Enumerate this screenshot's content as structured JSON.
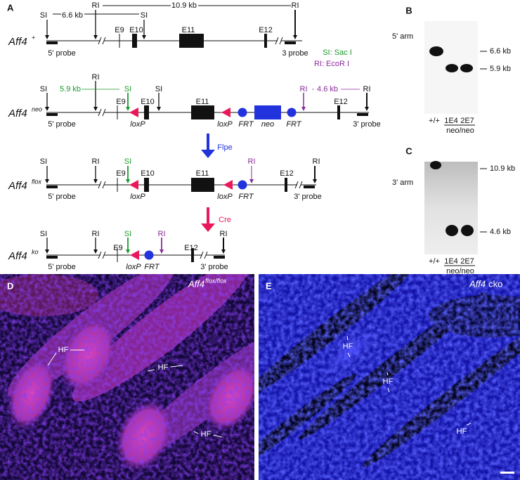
{
  "panel_a": {
    "label": "A",
    "legend": [
      "SI: Sac I",
      "RI: EcoR I"
    ],
    "steps": [
      "Flpe",
      "Cre"
    ],
    "alleles": [
      {
        "name": "Aff4",
        "sup": "+",
        "labels": [
          "SI",
          "6.6 kb",
          "RI",
          "SI",
          "10.9 kb",
          "RI",
          "E9",
          "E10",
          "E11",
          "E12",
          "5' probe",
          "3 probe"
        ]
      },
      {
        "name": "Aff4",
        "sup": "neo",
        "labels": [
          "SI",
          "5.9 kb",
          "RI",
          "SI",
          "SI",
          "RI",
          "4.6 kb",
          "RI",
          "E9",
          "E10",
          "E11",
          "E12",
          "loxP",
          "loxP",
          "FRT",
          "neo",
          "FRT",
          "5' probe",
          "3' probe"
        ]
      },
      {
        "name": "Aff4",
        "sup": "flox",
        "labels": [
          "SI",
          "RI",
          "SI",
          "RI",
          "RI",
          "E9",
          "E10",
          "E11",
          "E12",
          "loxP",
          "loxP",
          "FRT",
          "5' probe",
          "3' probe"
        ]
      },
      {
        "name": "Aff4",
        "sup": "ko",
        "labels": [
          "SI",
          "RI",
          "SI",
          "RI",
          "RI",
          "E9",
          "E12",
          "loxP",
          "FRT",
          "5' probe",
          "3' probe"
        ]
      }
    ]
  },
  "panel_b": {
    "label": "B",
    "probe": "5' arm",
    "sizes": [
      "6.6 kb",
      "5.9 kb"
    ],
    "lanes": [
      "+/+",
      "1E4",
      "2E7"
    ],
    "genotype": "neo/neo"
  },
  "panel_c": {
    "label": "C",
    "probe": "3' arm",
    "sizes": [
      "10.9 kb",
      "4.6 kb"
    ],
    "lanes": [
      "+/+",
      "1E4",
      "2E7"
    ],
    "genotype": "neo/neo"
  },
  "panel_d": {
    "label": "D",
    "gene": "Aff4",
    "genotype": "flox/flox",
    "hf": [
      "HF",
      "HF",
      "HF"
    ]
  },
  "panel_e": {
    "label": "E",
    "gene": "Aff4",
    "genotype": "cko",
    "hf": [
      "HF",
      "HF",
      "HF"
    ]
  }
}
